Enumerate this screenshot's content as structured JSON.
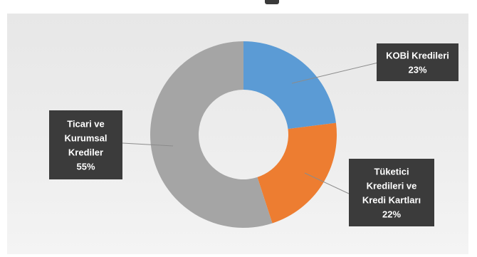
{
  "chart_data": {
    "type": "pie",
    "variant": "donut",
    "title": "",
    "slices": [
      {
        "label_lines": [
          "KOBİ Kredileri",
          "23%"
        ],
        "value": 23,
        "color": "#5b9bd5"
      },
      {
        "label_lines": [
          "Tüketici",
          "Kredileri ve",
          "Kredi Kartları",
          "22%"
        ],
        "value": 22,
        "color": "#ed7d31"
      },
      {
        "label_lines": [
          "Ticari  ve",
          "Kurumsal",
          "Krediler",
          "55%"
        ],
        "value": 55,
        "color": "#a5a5a5"
      }
    ],
    "start_angle_deg": 0,
    "legend": "none",
    "data_labels": "callouts"
  }
}
